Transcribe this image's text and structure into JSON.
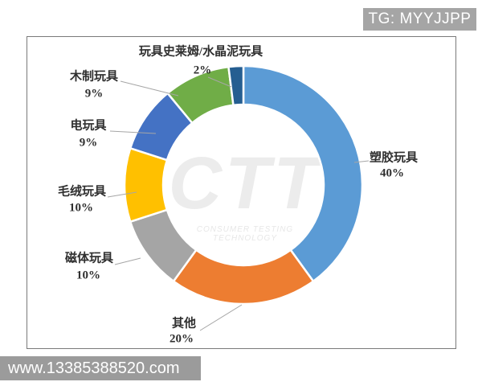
{
  "badge": {
    "text": "TG: MYYJJPP",
    "bg_color": "#a5a5a5"
  },
  "footer": {
    "text": "www.13385388520.com",
    "bg_color": "#9b9b9b"
  },
  "watermark": {
    "text": "CTT",
    "subtext": "CONSUMER TESTING TECHNOLOGY"
  },
  "chart_data": {
    "type": "pie",
    "variant": "donut",
    "title": "",
    "start_angle_deg": 0,
    "direction": "clockwise",
    "legend_position": "none",
    "labels_style": "outside-with-leader-lines",
    "slice_gap_color": "#ffffff",
    "slices": [
      {
        "label": "塑胶玩具",
        "value": 40,
        "pct_label": "40%",
        "color": "#5B9BD5"
      },
      {
        "label": "其他",
        "value": 20,
        "pct_label": "20%",
        "color": "#ED7D31"
      },
      {
        "label": "磁体玩具",
        "value": 10,
        "pct_label": "10%",
        "color": "#A5A5A5"
      },
      {
        "label": "毛绒玩具",
        "value": 10,
        "pct_label": "10%",
        "color": "#FFC000"
      },
      {
        "label": "电玩具",
        "value": 9,
        "pct_label": "9%",
        "color": "#4472C4"
      },
      {
        "label": "木制玩具",
        "value": 9,
        "pct_label": "9%",
        "color": "#70AD47"
      },
      {
        "label": "玩具史莱姆/水晶泥玩具",
        "value": 2,
        "pct_label": "2%",
        "color": "#255E91"
      }
    ]
  }
}
